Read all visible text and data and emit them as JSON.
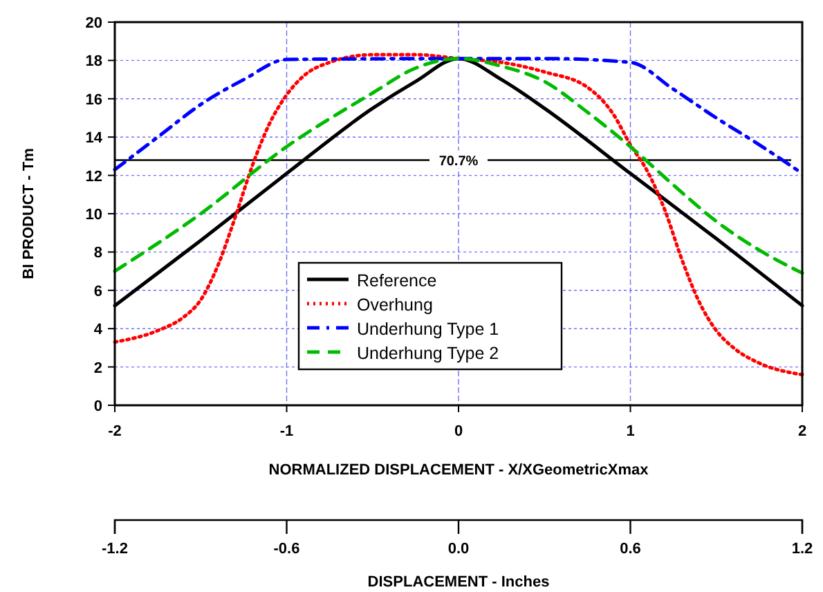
{
  "chart_data": {
    "type": "line",
    "xlabel": "NORMALIZED DISPLACEMENT - X/XGeometricXmax",
    "ylabel": "BI PRODUCT - Tm",
    "x2label": "DISPLACEMENT - Inches",
    "xlim": [
      -2,
      2
    ],
    "xticks": [
      -2,
      -1,
      0,
      1,
      2
    ],
    "ylim": [
      0,
      20
    ],
    "yticks": [
      0,
      2,
      4,
      6,
      8,
      10,
      12,
      14,
      16,
      18,
      20
    ],
    "x2lim": [
      -1.2,
      1.2
    ],
    "x2ticks": [
      {
        "value": -1.2,
        "label": "-1.2"
      },
      {
        "value": -0.6,
        "label": "-0.6"
      },
      {
        "value": 0,
        "label": "0.0"
      },
      {
        "value": 0.6,
        "label": "0.6"
      },
      {
        "value": 1.2,
        "label": "1.2"
      }
    ],
    "grid": true,
    "legend": "bottom",
    "ref_lines": [
      {
        "axis": "y",
        "value": 12.8,
        "color": "#000000"
      }
    ],
    "annotations": [
      {
        "text": "70.7%",
        "x": 0,
        "y": 12.8
      }
    ],
    "series": [
      {
        "name": "Reference",
        "color": "#000000",
        "line_style": "solid",
        "x": [
          -2,
          -1.5,
          -1,
          -0.5,
          -0.25,
          0,
          0.25,
          0.5,
          1,
          1.5,
          2
        ],
        "values": [
          5.2,
          8.6,
          12.1,
          15.5,
          16.9,
          18.1,
          17,
          15.5,
          12.1,
          8.7,
          5.2
        ]
      },
      {
        "name": "Overhung",
        "color": "#ff0000",
        "line_style": "dotted",
        "x": [
          -2,
          -1.75,
          -1.6,
          -1.5,
          -1.4,
          -1.3,
          -1.2,
          -1.1,
          -1,
          -0.9,
          -0.75,
          -0.5,
          -0.25,
          0,
          0.25,
          0.5,
          0.75,
          0.9,
          1,
          1.1,
          1.2,
          1.3,
          1.4,
          1.5,
          1.6,
          1.75,
          2
        ],
        "values": [
          3.3,
          3.9,
          4.6,
          5.5,
          7.3,
          9.8,
          12.5,
          14.7,
          16.2,
          17.2,
          17.9,
          18.3,
          18.3,
          18.1,
          17.9,
          17.4,
          16.6,
          15.2,
          13.6,
          12.2,
          10.2,
          7.6,
          5.4,
          3.9,
          3,
          2.2,
          1.6
        ]
      },
      {
        "name": "Underhung Type 1",
        "color": "#0000ff",
        "line_style": "dashdot",
        "x": [
          -2,
          -1.75,
          -1.5,
          -1.25,
          -1,
          0,
          0.5,
          1,
          1.25,
          1.5,
          1.75,
          2
        ],
        "values": [
          12.3,
          14,
          15.7,
          17,
          18.05,
          18.1,
          18.1,
          17.9,
          16.5,
          15,
          13.6,
          12.1
        ]
      },
      {
        "name": "Underhung Type 2",
        "color": "#00bb00",
        "line_style": "dashed",
        "x": [
          -2,
          -1.5,
          -1,
          -0.5,
          -0.25,
          0,
          0.25,
          0.5,
          0.75,
          1,
          1.25,
          1.5,
          1.75,
          2
        ],
        "values": [
          7,
          10,
          13.5,
          16.3,
          17.6,
          18.1,
          17.7,
          16.9,
          15.3,
          13.5,
          11.5,
          9.6,
          8.1,
          6.9
        ]
      }
    ]
  }
}
